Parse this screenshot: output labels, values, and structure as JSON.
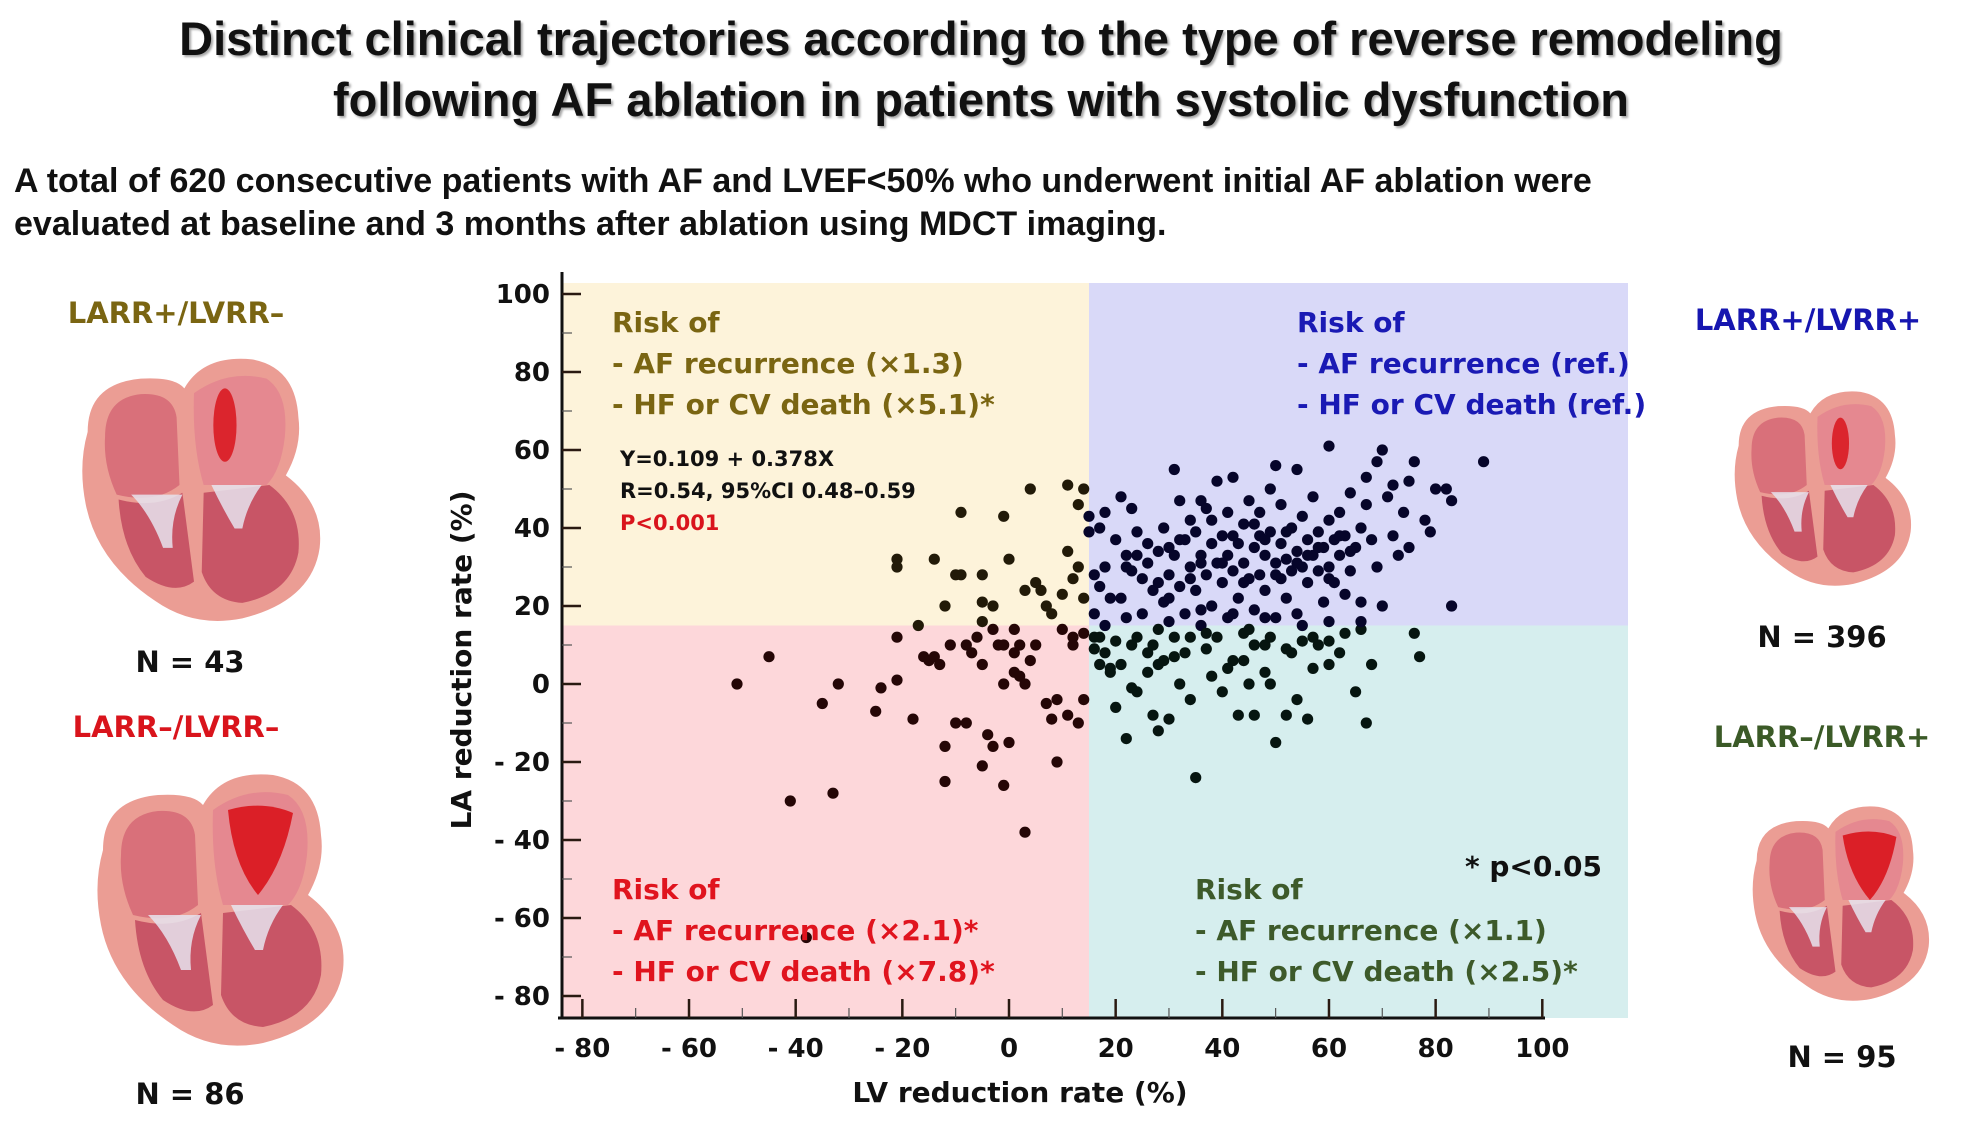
{
  "title": {
    "line1": "Distinct clinical trajectories according to the type of reverse remodeling",
    "line2": "following AF ablation in patients with systolic dysfunction"
  },
  "subtitle": {
    "line1": "A total of 620 consecutive patients with AF and LVEF<50% who underwent initial AF ablation were",
    "line2": "evaluated at baseline and 3 months after ablation using MDCT imaging."
  },
  "groups": [
    {
      "id": "larr_pos_lvrr_neg",
      "label": "LARR+/LVRR–",
      "n": "N = 43",
      "color": "#7a6512",
      "heart_icon": "heart-cross-section-icon",
      "position": "top-left"
    },
    {
      "id": "larr_neg_lvrr_neg",
      "label": "LARR–/LVRR–",
      "n": "N = 86",
      "color": "#d9141c",
      "heart_icon": "heart-cross-section-icon",
      "position": "bottom-left"
    },
    {
      "id": "larr_pos_lvrr_pos",
      "label": "LARR+/LVRR+",
      "n": "N = 396",
      "color": "#1616b0",
      "heart_icon": "heart-cross-section-icon",
      "position": "top-right"
    },
    {
      "id": "larr_neg_lvrr_pos",
      "label": "LARR–/LVRR+",
      "n": "N = 95",
      "color": "#3b5a27",
      "heart_icon": "heart-cross-section-icon",
      "position": "bottom-right"
    }
  ],
  "chart_data": {
    "type": "scatter",
    "title": "",
    "xlabel": "LV reduction rate (%)",
    "ylabel": "LA reduction rate (%)",
    "xlim": [
      -85,
      115
    ],
    "ylim": [
      -85,
      104
    ],
    "x_ticks": [
      -80,
      -60,
      -40,
      -20,
      0,
      20,
      40,
      60,
      80,
      100
    ],
    "x_tick_labels": [
      "- 80",
      "- 60",
      "- 40",
      "- 20",
      "0",
      "20",
      "40",
      "60",
      "80",
      "100"
    ],
    "y_ticks": [
      100,
      80,
      60,
      40,
      20,
      0,
      -20,
      -40,
      -60,
      -80
    ],
    "y_tick_labels": [
      "100",
      "80",
      "60",
      "40",
      "20",
      "0",
      "- 20",
      "- 40",
      "- 60",
      "- 80"
    ],
    "grid": false,
    "quadrant_cutoffs": {
      "x": 15,
      "y": 15
    },
    "quadrants": [
      {
        "name": "LARR+/LVRR–",
        "region": "top-left",
        "fill": "#fdf3da",
        "text_color": "#7a6512",
        "lines": [
          "Risk of",
          "- AF recurrence (×1.3)",
          "- HF or CV death (×5.1)*"
        ]
      },
      {
        "name": "LARR+/LVRR+",
        "region": "top-right",
        "fill": "#d9d9f8",
        "text_color": "#1a1ab4",
        "lines": [
          "Risk of",
          "- AF recurrence (ref.)",
          "- HF or CV death (ref.)"
        ]
      },
      {
        "name": "LARR–/LVRR–",
        "region": "bottom-left",
        "fill": "#fdd7da",
        "text_color": "#e0141e",
        "lines": [
          "Risk of",
          "- AF recurrence (×2.1)*",
          "- HF or CV death (×7.8)*"
        ]
      },
      {
        "name": "LARR–/LVRR+",
        "region": "bottom-right",
        "fill": "#d6eeee",
        "text_color": "#3d5a2a",
        "lines": [
          "Risk of",
          "- AF recurrence (×1.1)",
          "- HF or CV death (×2.5)*"
        ]
      }
    ],
    "regression": {
      "equation": "Y=0.109 + 0.378X",
      "correlation": "R=0.54, 95%CI 0.48–0.59",
      "p_value": "P<0.001",
      "p_value_color": "#d9141c"
    },
    "footnote": "* p<0.05",
    "point_colors": {
      "top-left": "#221a08",
      "top-right": "#06052a",
      "bottom-left": "#250606",
      "bottom-right": "#061510"
    },
    "points": [
      [
        -51,
        0
      ],
      [
        -45,
        7
      ],
      [
        -41,
        -30
      ],
      [
        -38,
        -65
      ],
      [
        -35,
        -5
      ],
      [
        -33,
        -28
      ],
      [
        -32,
        0
      ],
      [
        -25,
        -7
      ],
      [
        -24,
        -1
      ],
      [
        -21,
        30
      ],
      [
        -21,
        32
      ],
      [
        -21,
        12
      ],
      [
        -21,
        1
      ],
      [
        -18,
        -9
      ],
      [
        -17,
        15
      ],
      [
        -16,
        7
      ],
      [
        -15,
        6
      ],
      [
        -14,
        32
      ],
      [
        -14,
        7
      ],
      [
        -13,
        5
      ],
      [
        -12,
        20
      ],
      [
        -12,
        -16
      ],
      [
        -12,
        -25
      ],
      [
        -11,
        10
      ],
      [
        -10,
        28
      ],
      [
        -10,
        -10
      ],
      [
        -9,
        28
      ],
      [
        -9,
        44
      ],
      [
        -8,
        -10
      ],
      [
        -8,
        10
      ],
      [
        -7,
        8
      ],
      [
        -6,
        12
      ],
      [
        -5,
        21
      ],
      [
        -5,
        16
      ],
      [
        -5,
        28
      ],
      [
        -5,
        5
      ],
      [
        -5,
        -21
      ],
      [
        -4,
        -13
      ],
      [
        -3,
        20
      ],
      [
        -3,
        14
      ],
      [
        -3,
        -16
      ],
      [
        -2,
        10
      ],
      [
        -1,
        10
      ],
      [
        -1,
        43
      ],
      [
        -1,
        0
      ],
      [
        -1,
        -26
      ],
      [
        0,
        32
      ],
      [
        0,
        -15
      ],
      [
        1,
        3
      ],
      [
        1,
        8
      ],
      [
        1,
        14
      ],
      [
        2,
        10
      ],
      [
        2,
        2
      ],
      [
        3,
        -38
      ],
      [
        3,
        24
      ],
      [
        3,
        0
      ],
      [
        4,
        50
      ],
      [
        4,
        6
      ],
      [
        5,
        26
      ],
      [
        5,
        10
      ],
      [
        6,
        24
      ],
      [
        7,
        -5
      ],
      [
        7,
        20
      ],
      [
        8,
        18
      ],
      [
        8,
        -9
      ],
      [
        9,
        -20
      ],
      [
        9,
        -4
      ],
      [
        10,
        14
      ],
      [
        10,
        23
      ],
      [
        11,
        51
      ],
      [
        11,
        34
      ],
      [
        11,
        -8
      ],
      [
        12,
        27
      ],
      [
        12,
        12
      ],
      [
        12,
        10
      ],
      [
        13,
        46
      ],
      [
        13,
        30
      ],
      [
        13,
        -10
      ],
      [
        14,
        50
      ],
      [
        14,
        22
      ],
      [
        14,
        -4
      ],
      [
        14,
        13
      ],
      [
        15,
        43
      ],
      [
        15,
        39
      ],
      [
        16,
        28
      ],
      [
        16,
        12
      ],
      [
        16,
        9
      ],
      [
        17,
        40
      ],
      [
        17,
        25
      ],
      [
        17,
        5
      ],
      [
        18,
        30
      ],
      [
        18,
        44
      ],
      [
        18,
        15
      ],
      [
        19,
        22
      ],
      [
        19,
        4
      ],
      [
        20,
        37
      ],
      [
        20,
        -6
      ],
      [
        21,
        48
      ],
      [
        21,
        22
      ],
      [
        21,
        5
      ],
      [
        22,
        33
      ],
      [
        22,
        -14
      ],
      [
        23,
        29
      ],
      [
        23,
        45
      ],
      [
        23,
        10
      ],
      [
        24,
        39
      ],
      [
        24,
        -2
      ],
      [
        25,
        18
      ],
      [
        25,
        27
      ],
      [
        26,
        31
      ],
      [
        26,
        3
      ],
      [
        27,
        24
      ],
      [
        27,
        -8
      ],
      [
        28,
        34
      ],
      [
        28,
        14
      ],
      [
        28,
        -12
      ],
      [
        29,
        40
      ],
      [
        29,
        21
      ],
      [
        29,
        6
      ],
      [
        30,
        35
      ],
      [
        30,
        28
      ],
      [
        30,
        -9
      ],
      [
        31,
        55
      ],
      [
        31,
        33
      ],
      [
        31,
        12
      ],
      [
        32,
        47
      ],
      [
        32,
        25
      ],
      [
        32,
        0
      ],
      [
        33,
        37
      ],
      [
        33,
        18
      ],
      [
        33,
        8
      ],
      [
        34,
        42
      ],
      [
        34,
        30
      ],
      [
        34,
        -4
      ],
      [
        35,
        39
      ],
      [
        35,
        24
      ],
      [
        35,
        -24
      ],
      [
        36,
        33
      ],
      [
        36,
        15
      ],
      [
        36,
        47
      ],
      [
        37,
        28
      ],
      [
        37,
        45
      ],
      [
        37,
        9
      ],
      [
        38,
        36
      ],
      [
        38,
        20
      ],
      [
        38,
        2
      ],
      [
        39,
        31
      ],
      [
        39,
        52
      ],
      [
        39,
        12
      ],
      [
        40,
        38
      ],
      [
        40,
        26
      ],
      [
        40,
        -2
      ],
      [
        41,
        33
      ],
      [
        41,
        44
      ],
      [
        41,
        17
      ],
      [
        42,
        29
      ],
      [
        42,
        53
      ],
      [
        42,
        6
      ],
      [
        43,
        36
      ],
      [
        43,
        22
      ],
      [
        43,
        -8
      ],
      [
        44,
        41
      ],
      [
        44,
        31
      ],
      [
        44,
        13
      ],
      [
        45,
        27
      ],
      [
        45,
        47
      ],
      [
        45,
        0
      ],
      [
        46,
        35
      ],
      [
        46,
        19
      ],
      [
        46,
        -8
      ],
      [
        47,
        38
      ],
      [
        47,
        44
      ],
      [
        47,
        28
      ],
      [
        48,
        33
      ],
      [
        48,
        24
      ],
      [
        48,
        10
      ],
      [
        49,
        39
      ],
      [
        49,
        50
      ],
      [
        49,
        0
      ],
      [
        50,
        31
      ],
      [
        50,
        56
      ],
      [
        50,
        17
      ],
      [
        50,
        -15
      ],
      [
        51,
        36
      ],
      [
        51,
        27
      ],
      [
        51,
        46
      ],
      [
        52,
        32
      ],
      [
        52,
        22
      ],
      [
        52,
        -8
      ],
      [
        53,
        40
      ],
      [
        53,
        29
      ],
      [
        53,
        8
      ],
      [
        54,
        34
      ],
      [
        54,
        55
      ],
      [
        54,
        -4
      ],
      [
        55,
        30
      ],
      [
        55,
        43
      ],
      [
        55,
        15
      ],
      [
        56,
        37
      ],
      [
        56,
        26
      ],
      [
        56,
        -9
      ],
      [
        57,
        33
      ],
      [
        57,
        48
      ],
      [
        57,
        4
      ],
      [
        58,
        39
      ],
      [
        58,
        29
      ],
      [
        59,
        35
      ],
      [
        59,
        21
      ],
      [
        60,
        61
      ],
      [
        60,
        30
      ],
      [
        60,
        42
      ],
      [
        60,
        11
      ],
      [
        61,
        37
      ],
      [
        61,
        26
      ],
      [
        62,
        33
      ],
      [
        62,
        44
      ],
      [
        63,
        38
      ],
      [
        63,
        23
      ],
      [
        64,
        29
      ],
      [
        64,
        49
      ],
      [
        65,
        35
      ],
      [
        65,
        -2
      ],
      [
        66,
        40
      ],
      [
        66,
        21
      ],
      [
        67,
        53
      ],
      [
        67,
        46
      ],
      [
        67,
        -10
      ],
      [
        68,
        37
      ],
      [
        68,
        5
      ],
      [
        69,
        57
      ],
      [
        69,
        30
      ],
      [
        70,
        60
      ],
      [
        70,
        20
      ],
      [
        71,
        48
      ],
      [
        72,
        51
      ],
      [
        72,
        38
      ],
      [
        73,
        33
      ],
      [
        74,
        44
      ],
      [
        75,
        52
      ],
      [
        75,
        35
      ],
      [
        76,
        57
      ],
      [
        76,
        13
      ],
      [
        77,
        7
      ],
      [
        78,
        42
      ],
      [
        79,
        39
      ],
      [
        80,
        50
      ],
      [
        82,
        50
      ],
      [
        83,
        47
      ],
      [
        83,
        20
      ],
      [
        89,
        57
      ],
      [
        22,
        30
      ],
      [
        24,
        33
      ],
      [
        26,
        36
      ],
      [
        28,
        26
      ],
      [
        30,
        22
      ],
      [
        32,
        37
      ],
      [
        34,
        27
      ],
      [
        36,
        31
      ],
      [
        38,
        42
      ],
      [
        40,
        31
      ],
      [
        42,
        38
      ],
      [
        44,
        26
      ],
      [
        46,
        41
      ],
      [
        48,
        37
      ],
      [
        50,
        28
      ],
      [
        52,
        39
      ],
      [
        54,
        31
      ],
      [
        56,
        33
      ],
      [
        58,
        35
      ],
      [
        60,
        27
      ],
      [
        62,
        38
      ],
      [
        64,
        34
      ],
      [
        24,
        12
      ],
      [
        26,
        8
      ],
      [
        28,
        5
      ],
      [
        34,
        12
      ],
      [
        44,
        6
      ],
      [
        46,
        10
      ],
      [
        48,
        3
      ],
      [
        52,
        9
      ],
      [
        58,
        10
      ],
      [
        60,
        5
      ],
      [
        62,
        8
      ],
      [
        66,
        14
      ],
      [
        20,
        11
      ],
      [
        18,
        8
      ],
      [
        17,
        12
      ],
      [
        19,
        3
      ],
      [
        23,
        -1
      ],
      [
        27,
        10
      ],
      [
        31,
        7
      ],
      [
        37,
        13
      ],
      [
        41,
        4
      ],
      [
        45,
        14
      ],
      [
        49,
        12
      ],
      [
        55,
        11
      ],
      [
        57,
        12
      ],
      [
        63,
        13
      ],
      [
        16,
        18
      ],
      [
        22,
        17
      ],
      [
        30,
        16
      ],
      [
        36,
        19
      ],
      [
        42,
        18
      ],
      [
        48,
        17
      ],
      [
        54,
        18
      ],
      [
        60,
        16
      ],
      [
        66,
        16
      ]
    ]
  }
}
